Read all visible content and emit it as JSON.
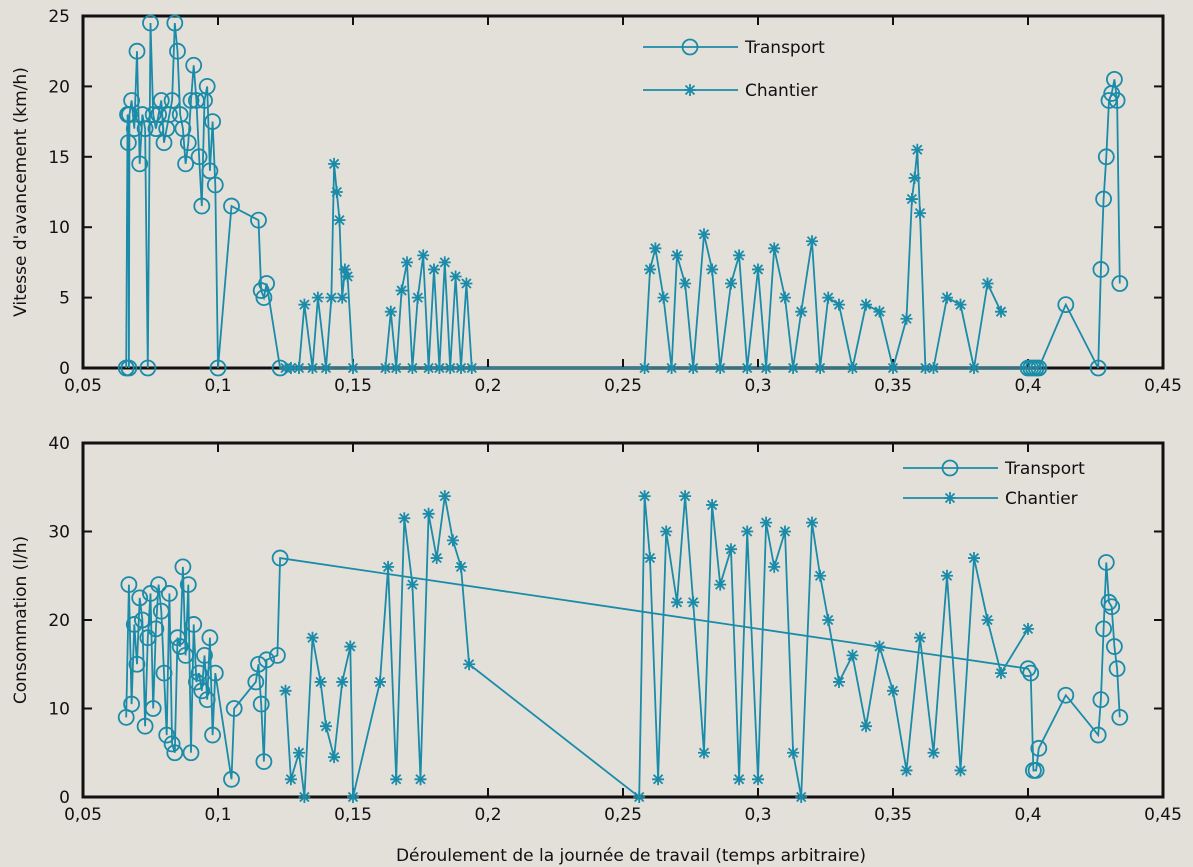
{
  "figure": {
    "xlabel": "Déroulement de la journée de travail (temps arbitraire)",
    "series_color": "#1a8ba8",
    "background": "#e3e0da"
  },
  "chart_data": [
    {
      "type": "line",
      "title": "",
      "ylabel": "Vitesse d'avancement (km/h)",
      "xlim": [
        0.05,
        0.45
      ],
      "ylim": [
        0,
        25
      ],
      "xticks": [
        "0,05",
        "0,1",
        "0,15",
        "0,2",
        "0,25",
        "0,3",
        "0,35",
        "0,4",
        "0,45"
      ],
      "yticks": [
        "0",
        "5",
        "10",
        "15",
        "20",
        "25"
      ],
      "legend_position": "top-center",
      "grid": false,
      "series": [
        {
          "name": "Transport",
          "marker": "circle",
          "x": [
            0.066,
            0.0665,
            0.0668,
            0.067,
            0.0672,
            0.068,
            0.069,
            0.07,
            0.071,
            0.072,
            0.073,
            0.074,
            0.075,
            0.076,
            0.077,
            0.078,
            0.079,
            0.08,
            0.081,
            0.082,
            0.083,
            0.084,
            0.085,
            0.086,
            0.087,
            0.088,
            0.089,
            0.09,
            0.091,
            0.092,
            0.093,
            0.094,
            0.095,
            0.096,
            0.097,
            0.098,
            0.099,
            0.1,
            0.105,
            0.115,
            0.116,
            0.117,
            0.118,
            0.123,
            0.4,
            0.401,
            0.402,
            0.403,
            0.404,
            0.414,
            0.426,
            0.427,
            0.428,
            0.429,
            0.43,
            0.431,
            0.432,
            0.433,
            0.434
          ],
          "y": [
            0,
            18,
            16,
            0,
            18,
            19,
            17,
            22.5,
            14.5,
            18,
            17,
            0,
            24.5,
            18,
            17,
            18,
            19,
            16,
            17,
            18,
            19,
            24.5,
            22.5,
            18,
            17,
            14.5,
            16,
            19,
            21.5,
            19,
            15,
            11.5,
            19,
            20,
            14,
            17.5,
            13,
            0,
            11.5,
            10.5,
            5.5,
            5,
            6,
            0,
            0,
            0,
            0,
            0,
            0,
            4.5,
            0,
            7,
            12,
            15,
            19,
            19.5,
            20.5,
            19,
            6
          ]
        },
        {
          "name": "Chantier",
          "marker": "star",
          "x": [
            0.125,
            0.127,
            0.13,
            0.132,
            0.135,
            0.137,
            0.14,
            0.142,
            0.143,
            0.144,
            0.145,
            0.146,
            0.147,
            0.148,
            0.15,
            0.162,
            0.164,
            0.166,
            0.168,
            0.17,
            0.172,
            0.174,
            0.176,
            0.178,
            0.18,
            0.182,
            0.184,
            0.186,
            0.188,
            0.19,
            0.192,
            0.194,
            0.258,
            0.26,
            0.262,
            0.265,
            0.268,
            0.27,
            0.273,
            0.276,
            0.28,
            0.283,
            0.286,
            0.29,
            0.293,
            0.296,
            0.3,
            0.303,
            0.306,
            0.31,
            0.313,
            0.316,
            0.32,
            0.323,
            0.326,
            0.33,
            0.335,
            0.34,
            0.345,
            0.35,
            0.355,
            0.357,
            0.358,
            0.359,
            0.36,
            0.362,
            0.365,
            0.37,
            0.375,
            0.38,
            0.385,
            0.39
          ],
          "y": [
            0,
            0,
            0,
            4.5,
            0,
            5,
            0,
            5,
            14.5,
            12.5,
            10.5,
            5,
            7,
            6.5,
            0,
            0,
            4,
            0,
            5.5,
            7.5,
            0,
            5,
            8,
            0,
            7,
            0,
            7.5,
            0,
            6.5,
            0,
            6,
            0,
            0,
            7,
            8.5,
            5,
            0,
            8,
            6,
            0,
            9.5,
            7,
            0,
            6,
            8,
            0,
            7,
            0,
            8.5,
            5,
            0,
            4,
            9,
            0,
            5,
            4.5,
            0,
            4.5,
            4,
            0,
            3.5,
            12,
            13.5,
            15.5,
            11,
            0,
            0,
            5,
            4.5,
            0,
            6,
            4
          ]
        }
      ]
    },
    {
      "type": "line",
      "title": "",
      "ylabel": "Consommation (l/h)",
      "xlim": [
        0.05,
        0.45
      ],
      "ylim": [
        0,
        40
      ],
      "xticks": [
        "0,05",
        "0,1",
        "0,15",
        "0,2",
        "0,25",
        "0,3",
        "0,35",
        "0,4",
        "0,45"
      ],
      "yticks": [
        "0",
        "10",
        "20",
        "30",
        "40"
      ],
      "legend_position": "top-right",
      "grid": false,
      "series": [
        {
          "name": "Transport",
          "marker": "circle",
          "x": [
            0.066,
            0.067,
            0.068,
            0.069,
            0.07,
            0.071,
            0.072,
            0.073,
            0.074,
            0.075,
            0.076,
            0.077,
            0.078,
            0.079,
            0.08,
            0.081,
            0.082,
            0.083,
            0.084,
            0.085,
            0.086,
            0.087,
            0.088,
            0.089,
            0.09,
            0.091,
            0.092,
            0.093,
            0.094,
            0.095,
            0.096,
            0.097,
            0.098,
            0.099,
            0.105,
            0.106,
            0.114,
            0.115,
            0.116,
            0.117,
            0.118,
            0.122,
            0.123,
            0.4,
            0.401,
            0.402,
            0.403,
            0.404,
            0.414,
            0.426,
            0.427,
            0.428,
            0.429,
            0.43,
            0.431,
            0.432,
            0.433,
            0.434
          ],
          "y": [
            9,
            24,
            10.5,
            19.5,
            15,
            22.5,
            20,
            8,
            18,
            23,
            10,
            19,
            24,
            21,
            14,
            7,
            23,
            6,
            5,
            18,
            17,
            26,
            16,
            24,
            5,
            19.5,
            13,
            14,
            12,
            16,
            11,
            18,
            7,
            14,
            2,
            10,
            13,
            15,
            10.5,
            4,
            15.5,
            16,
            27,
            14.5,
            14,
            3,
            3,
            5.5,
            11.5,
            7,
            11,
            19,
            26.5,
            22,
            21.5,
            17,
            14.5,
            9
          ]
        },
        {
          "name": "Chantier",
          "marker": "star",
          "x": [
            0.125,
            0.127,
            0.13,
            0.132,
            0.135,
            0.138,
            0.14,
            0.143,
            0.146,
            0.149,
            0.15,
            0.16,
            0.163,
            0.166,
            0.169,
            0.172,
            0.175,
            0.178,
            0.181,
            0.184,
            0.187,
            0.19,
            0.193,
            0.256,
            0.258,
            0.26,
            0.263,
            0.266,
            0.27,
            0.273,
            0.276,
            0.28,
            0.283,
            0.286,
            0.29,
            0.293,
            0.296,
            0.3,
            0.303,
            0.306,
            0.31,
            0.313,
            0.316,
            0.32,
            0.323,
            0.326,
            0.33,
            0.335,
            0.34,
            0.345,
            0.35,
            0.355,
            0.36,
            0.365,
            0.37,
            0.375,
            0.38,
            0.385,
            0.39,
            0.4
          ],
          "y": [
            12,
            2,
            5,
            0,
            18,
            13,
            8,
            4.5,
            13,
            17,
            0,
            13,
            26,
            2,
            31.5,
            24,
            2,
            32,
            27,
            34,
            29,
            26,
            15,
            0,
            34,
            27,
            2,
            30,
            22,
            34,
            22,
            5,
            33,
            24,
            28,
            2,
            30,
            2,
            31,
            26,
            30,
            5,
            0,
            31,
            25,
            20,
            13,
            16,
            8,
            17,
            12,
            3,
            18,
            5,
            25,
            3,
            27,
            20,
            14,
            19
          ]
        }
      ]
    }
  ]
}
